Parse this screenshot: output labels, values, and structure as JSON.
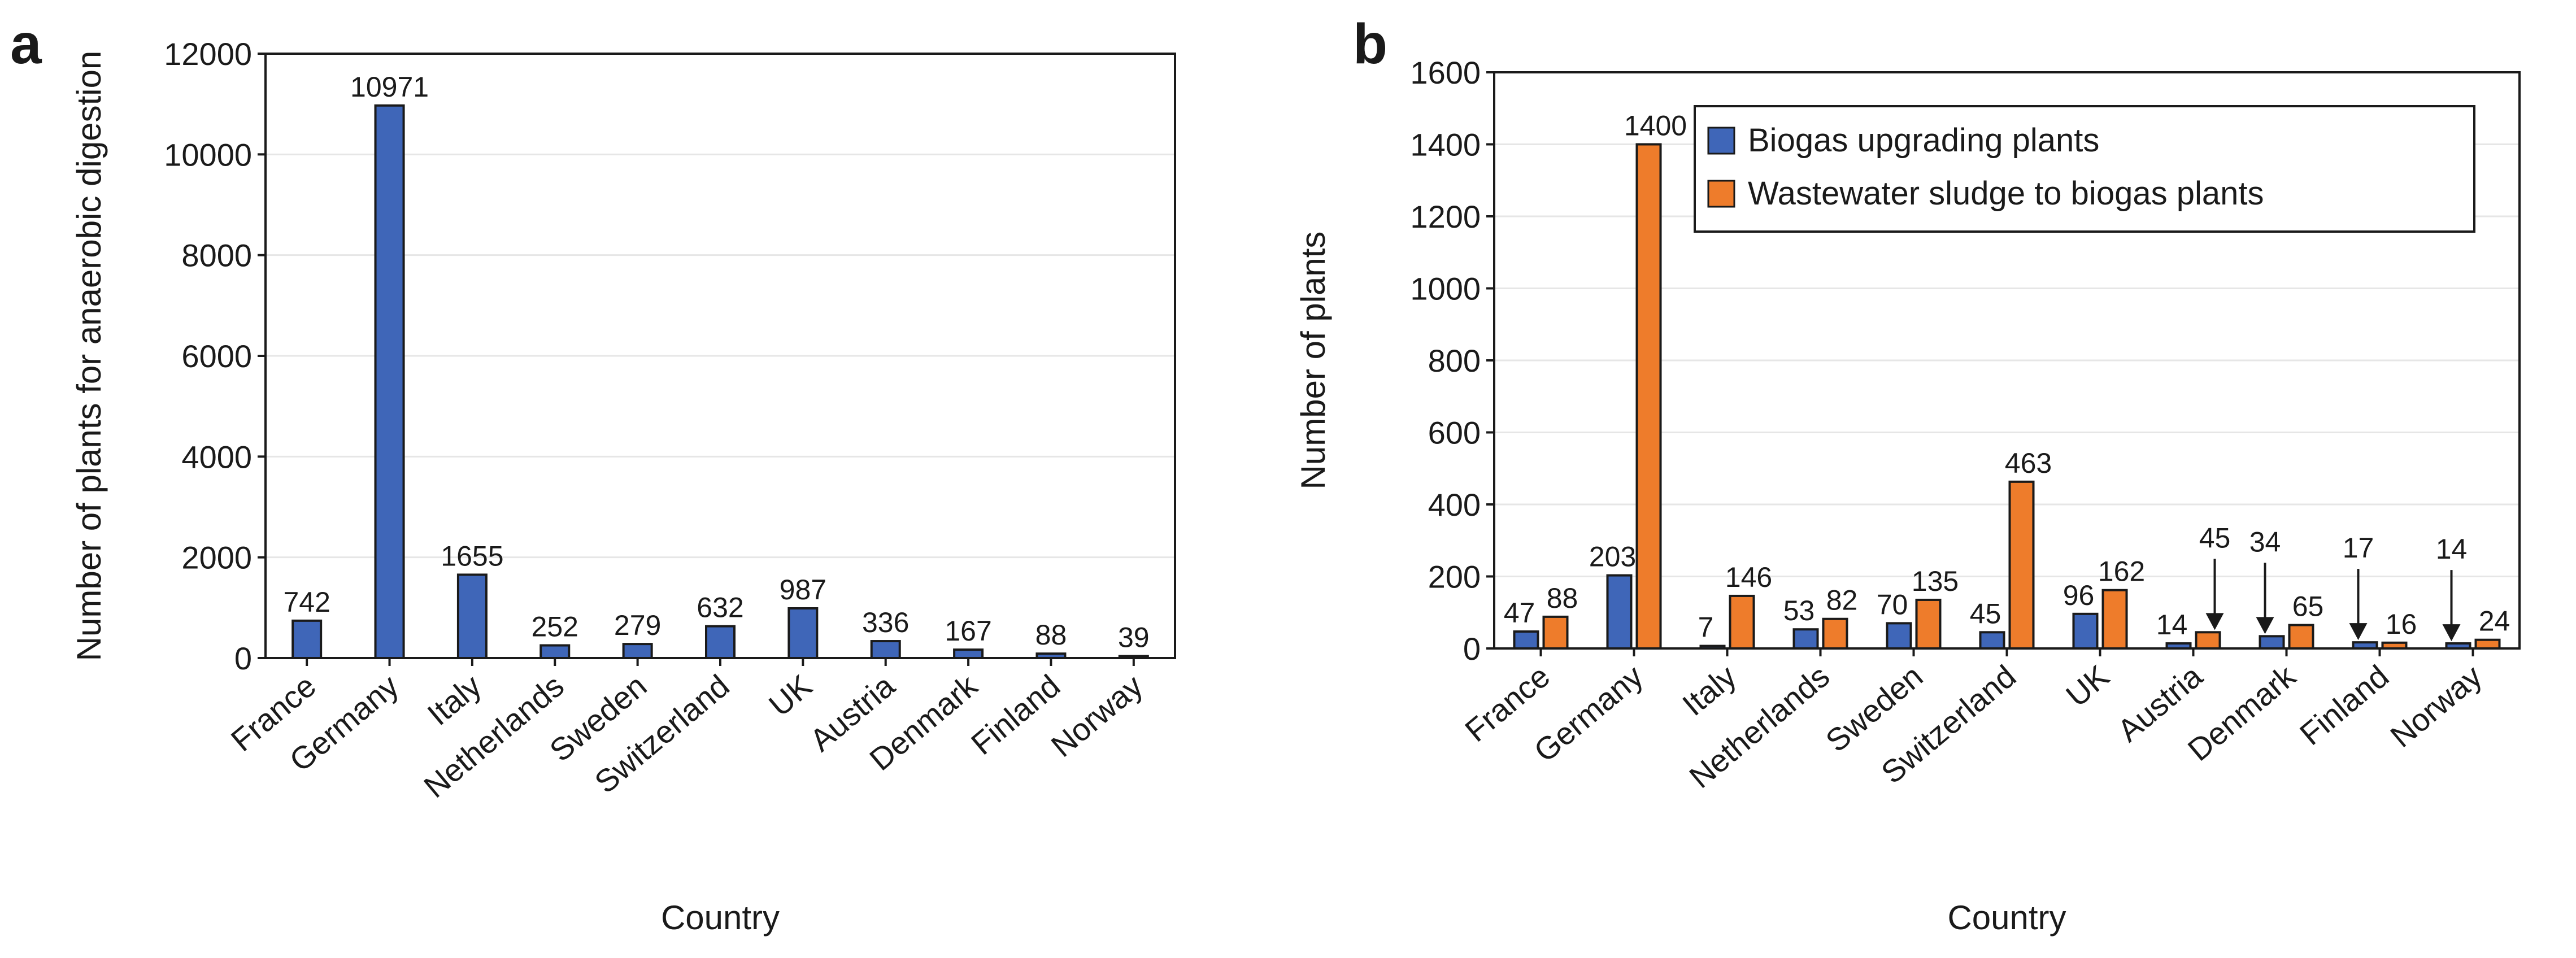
{
  "panels": {
    "a": {
      "letter": "a"
    },
    "b": {
      "letter": "b"
    }
  },
  "colors": {
    "blue": "#3F66B8",
    "orange": "#EE7C2B",
    "axis": "#1a1a1a",
    "grid": "#e6e6e6"
  },
  "chart_data": [
    {
      "type": "bar",
      "panel": "a",
      "title": "",
      "xlabel": "Country",
      "ylabel": "Number of plants for anaerobic digestion",
      "ylim": [
        0,
        12000
      ],
      "yticks": [
        0,
        2000,
        4000,
        6000,
        8000,
        10000,
        12000
      ],
      "grid": true,
      "categories": [
        "France",
        "Germany",
        "Italy",
        "Netherlands",
        "Sweden",
        "Switzerland",
        "UK",
        "Austria",
        "Denmark",
        "Finland",
        "Norway"
      ],
      "values": [
        742,
        10971,
        1655,
        252,
        279,
        632,
        987,
        336,
        167,
        88,
        39
      ]
    },
    {
      "type": "bar",
      "panel": "b",
      "title": "",
      "xlabel": "Country",
      "ylabel": "Number of plants",
      "ylim": [
        0,
        1600
      ],
      "yticks": [
        0,
        200,
        400,
        600,
        800,
        1000,
        1200,
        1400,
        1600
      ],
      "grid": true,
      "legend_position": "top-right",
      "categories": [
        "France",
        "Germany",
        "Italy",
        "Netherlands",
        "Sweden",
        "Switzerland",
        "UK",
        "Austria",
        "Denmark",
        "Finland",
        "Norway"
      ],
      "series": [
        {
          "name": "Biogas upgrading plants",
          "values": [
            47,
            203,
            7,
            53,
            70,
            45,
            96,
            14,
            34,
            17,
            14
          ]
        },
        {
          "name": "Wastewater sludge to biogas plants",
          "values": [
            88,
            1400,
            146,
            82,
            135,
            463,
            162,
            45,
            65,
            16,
            24
          ]
        }
      ],
      "arrow_annotations": [
        {
          "category": "Austria",
          "series": 1
        },
        {
          "category": "Denmark",
          "series": 0
        },
        {
          "category": "Finland",
          "series": 0
        },
        {
          "category": "Norway",
          "series": 0
        }
      ]
    }
  ]
}
